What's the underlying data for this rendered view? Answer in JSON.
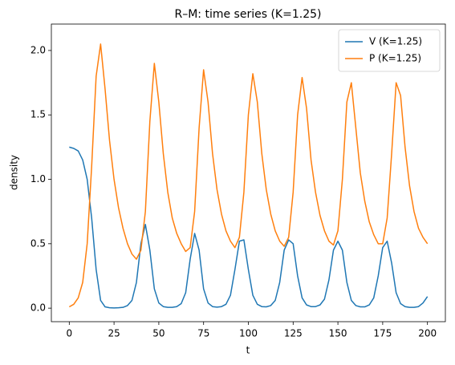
{
  "chart_data": {
    "type": "line",
    "title": "R–M: time series (K=1.25)",
    "x_label": "t",
    "y_label": "density",
    "x": [
      0,
      2.5,
      5,
      7.5,
      10,
      12.5,
      15,
      17.5,
      20,
      22.5,
      25,
      27.5,
      30,
      32.5,
      35,
      37.5,
      40,
      42.5,
      45,
      47.5,
      50,
      52.5,
      55,
      57.5,
      60,
      62.5,
      65,
      67.5,
      70,
      72.5,
      75,
      77.5,
      80,
      82.5,
      85,
      87.5,
      90,
      92.5,
      95,
      97.5,
      100,
      102.5,
      105,
      107.5,
      110,
      112.5,
      115,
      117.5,
      120,
      122.5,
      125,
      127.5,
      130,
      132.5,
      135,
      137.5,
      140,
      142.5,
      145,
      147.5,
      150,
      152.5,
      155,
      157.5,
      160,
      162.5,
      165,
      167.5,
      170,
      172.5,
      175,
      177.5,
      180,
      182.5,
      185,
      187.5,
      190,
      192.5,
      195,
      197.5,
      200
    ],
    "series": [
      {
        "name": "V (K=1.25)",
        "color": "#1f77b4",
        "values": [
          1.25,
          1.24,
          1.22,
          1.15,
          1.0,
          0.7,
          0.3,
          0.06,
          0.01,
          0.003,
          0.002,
          0.003,
          0.006,
          0.02,
          0.06,
          0.2,
          0.5,
          0.65,
          0.45,
          0.15,
          0.04,
          0.012,
          0.006,
          0.006,
          0.012,
          0.035,
          0.12,
          0.38,
          0.58,
          0.45,
          0.15,
          0.04,
          0.012,
          0.008,
          0.012,
          0.03,
          0.1,
          0.3,
          0.52,
          0.53,
          0.3,
          0.1,
          0.03,
          0.012,
          0.01,
          0.02,
          0.06,
          0.2,
          0.45,
          0.53,
          0.5,
          0.25,
          0.08,
          0.025,
          0.012,
          0.012,
          0.025,
          0.07,
          0.22,
          0.45,
          0.52,
          0.45,
          0.2,
          0.06,
          0.02,
          0.01,
          0.01,
          0.025,
          0.08,
          0.25,
          0.47,
          0.52,
          0.35,
          0.12,
          0.035,
          0.012,
          0.006,
          0.006,
          0.012,
          0.04,
          0.09
        ]
      },
      {
        "name": "P (K=1.25)",
        "color": "#ff7f0e",
        "values": [
          0.01,
          0.03,
          0.08,
          0.2,
          0.5,
          1.1,
          1.8,
          2.05,
          1.7,
          1.3,
          1.0,
          0.78,
          0.62,
          0.5,
          0.42,
          0.38,
          0.45,
          0.75,
          1.45,
          1.9,
          1.6,
          1.2,
          0.9,
          0.7,
          0.58,
          0.5,
          0.44,
          0.47,
          0.75,
          1.4,
          1.85,
          1.6,
          1.2,
          0.92,
          0.73,
          0.6,
          0.52,
          0.47,
          0.55,
          0.9,
          1.5,
          1.82,
          1.6,
          1.2,
          0.92,
          0.73,
          0.6,
          0.52,
          0.48,
          0.55,
          0.9,
          1.5,
          1.79,
          1.55,
          1.15,
          0.9,
          0.72,
          0.6,
          0.52,
          0.49,
          0.6,
          1.0,
          1.6,
          1.75,
          1.4,
          1.05,
          0.83,
          0.67,
          0.57,
          0.5,
          0.5,
          0.7,
          1.2,
          1.75,
          1.65,
          1.25,
          0.95,
          0.75,
          0.62,
          0.55,
          0.5
        ]
      }
    ],
    "xlim": [
      -10,
      210
    ],
    "ylim": [
      -0.105,
      2.205
    ],
    "xticks": [
      0,
      25,
      50,
      75,
      100,
      125,
      150,
      175,
      200
    ],
    "yticks": [
      {
        "value": 0,
        "label": "0.0"
      },
      {
        "value": 0.5,
        "label": "0.5"
      },
      {
        "value": 1,
        "label": "1.0"
      },
      {
        "value": 1.5,
        "label": "1.5"
      },
      {
        "value": 2,
        "label": "2.0"
      }
    ],
    "legend": "upper right",
    "grid": false
  }
}
